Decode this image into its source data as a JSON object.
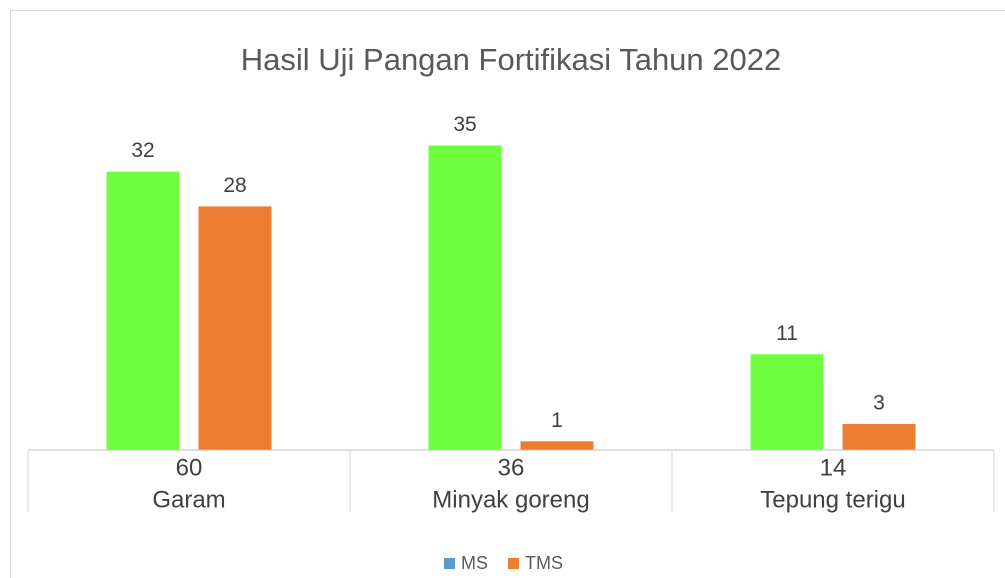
{
  "chart_data": {
    "type": "bar",
    "title": "Hasil Uji Pangan Fortifikasi Tahun 2022",
    "categories": [
      "Garam",
      "Minyak goreng",
      "Tepung terigu"
    ],
    "category_totals": [
      60,
      36,
      14
    ],
    "series": [
      {
        "name": "MS",
        "color": "#6fff3f",
        "legend_color": "#5b9bd5",
        "values": [
          32,
          35,
          11
        ]
      },
      {
        "name": "TMS",
        "color": "#ed7d31",
        "legend_color": "#ed7d31",
        "values": [
          28,
          1,
          3
        ]
      }
    ],
    "ylim": [
      0,
      40
    ],
    "legend": "bottom"
  }
}
